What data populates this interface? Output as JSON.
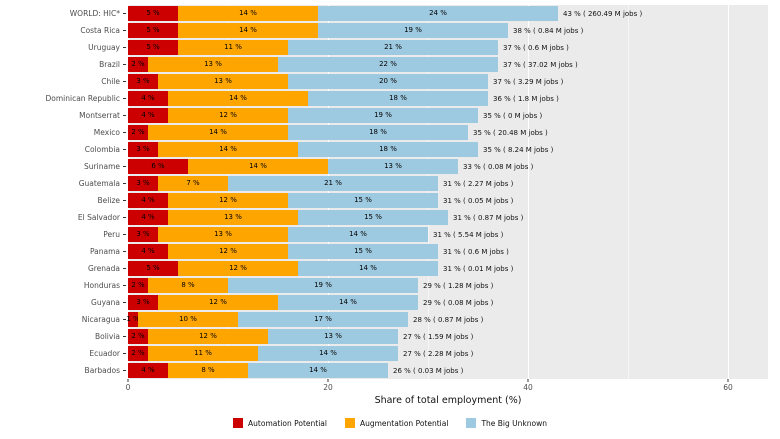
{
  "chart_data": {
    "type": "bar",
    "orientation": "horizontal",
    "stacked": true,
    "title": "",
    "xlabel": "Share of total employment (%)",
    "ylabel": "",
    "xlim": [
      0,
      64
    ],
    "x_ticks": [
      0,
      20,
      40,
      60
    ],
    "x_minor_ticks": [
      10,
      30,
      50
    ],
    "grid": true,
    "panel_color": "#EBEBEB",
    "legend_position": "bottom",
    "categories": [
      "WORLD: HIC*",
      "Costa Rica",
      "Uruguay",
      "Brazil",
      "Chile",
      "Dominican Republic",
      "Montserrat",
      "Mexico",
      "Colombia",
      "Suriname",
      "Guatemala",
      "Belize",
      "El Salvador",
      "Peru",
      "Panama",
      "Grenada",
      "Honduras",
      "Guyana",
      "Nicaragua",
      "Bolivia",
      "Ecuador",
      "Barbados"
    ],
    "series": [
      {
        "key": "automation",
        "name": "Automation Potential",
        "color": "#CC0000",
        "values": [
          5,
          5,
          5,
          2,
          3,
          4,
          4,
          2,
          3,
          6,
          3,
          4,
          4,
          3,
          4,
          5,
          2,
          3,
          1,
          2,
          2,
          4
        ]
      },
      {
        "key": "augmentation",
        "name": "Augmentation Potential",
        "color": "#FFA500",
        "values": [
          14,
          14,
          11,
          13,
          13,
          14,
          12,
          14,
          14,
          14,
          7,
          12,
          13,
          13,
          12,
          12,
          8,
          12,
          10,
          12,
          11,
          8
        ]
      },
      {
        "key": "big-unknown",
        "name": "The Big Unknown",
        "color": "#9ECAE1",
        "values": [
          24,
          19,
          21,
          22,
          20,
          18,
          19,
          18,
          18,
          13,
          21,
          15,
          15,
          14,
          15,
          14,
          19,
          14,
          17,
          13,
          14,
          14
        ]
      }
    ],
    "totals": [
      "43 % ( 260.49 M jobs )",
      "38 % ( 0.84 M jobs )",
      "37 % ( 0.6 M jobs )",
      "37 % ( 37.02 M jobs )",
      "37 % ( 3.29 M jobs )",
      "36 % ( 1.8 M jobs )",
      "35 % ( 0 M jobs )",
      "35 % ( 20.48 M jobs )",
      "35 % ( 8.24 M jobs )",
      "33 % ( 0.08 M jobs )",
      "31 % ( 2.27 M jobs )",
      "31 % ( 0.05 M jobs )",
      "31 % ( 0.87 M jobs )",
      "31 % ( 5.54 M jobs )",
      "31 % ( 0.6 M jobs )",
      "31 % ( 0.01 M jobs )",
      "29 % ( 1.28 M jobs )",
      "29 % ( 0.08 M jobs )",
      "28 % ( 0.87 M jobs )",
      "27 % ( 1.59 M jobs )",
      "27 % ( 2.28 M jobs )",
      "26 % ( 0.03 M jobs )"
    ]
  }
}
